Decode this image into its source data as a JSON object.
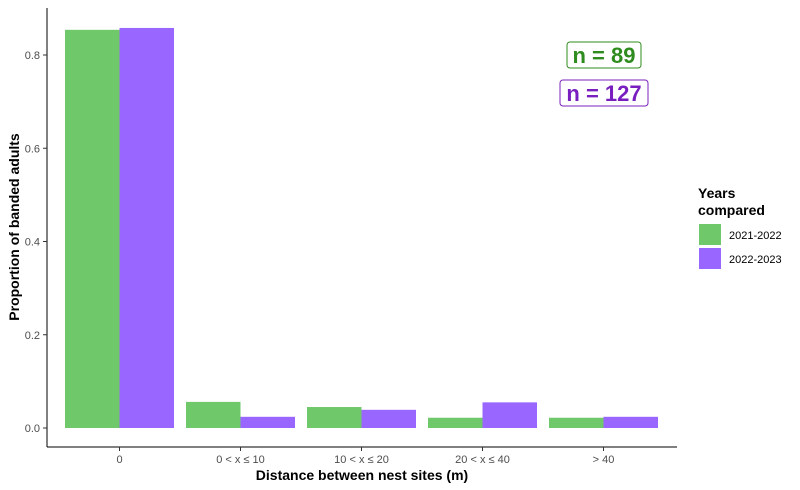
{
  "chart_data": {
    "type": "bar",
    "xlabel": "Distance between nest sites (m)",
    "ylabel": "Proportion of banded adults",
    "categories": [
      "0",
      "0 < x ≤ 10",
      "10 < x ≤ 20",
      "20 < x ≤ 40",
      "> 40"
    ],
    "series": [
      {
        "name": "2021-2022",
        "color": "#6fc86a",
        "values": [
          0.854,
          0.056,
          0.045,
          0.022,
          0.022
        ]
      },
      {
        "name": "2022-2023",
        "color": "#9966ff",
        "values": [
          0.858,
          0.024,
          0.039,
          0.055,
          0.024
        ]
      }
    ],
    "ylim": [
      0,
      0.9
    ],
    "yticks": [
      0.0,
      0.2,
      0.4,
      0.6,
      0.8
    ],
    "ytick_labels": [
      "0.0",
      "0.2",
      "0.4",
      "0.6",
      "0.8"
    ],
    "grid": false,
    "legend": {
      "title_lines": [
        "Years",
        "compared"
      ],
      "placement": "right"
    },
    "annotations": [
      {
        "text": "n = 89",
        "color": "#2e8b1e"
      },
      {
        "text": "n = 127",
        "color": "#7a1fbf"
      }
    ]
  }
}
